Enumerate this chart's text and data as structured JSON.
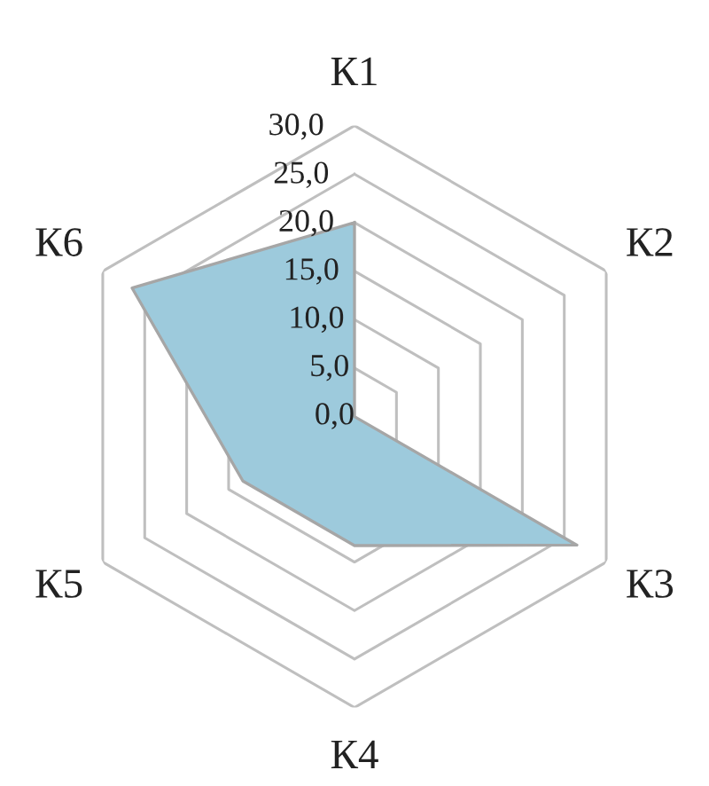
{
  "chart_data": {
    "type": "radar",
    "categories": [
      "К1",
      "К2",
      "К3",
      "К4",
      "К5",
      "К6"
    ],
    "series": [
      {
        "color": "#9dcadc",
        "values": [
          20.0,
          0.0,
          26.5,
          13.3,
          13.3,
          26.5
        ]
      }
    ],
    "ylim": [
      0,
      30
    ],
    "yticks": [
      {
        "value": 0,
        "label": "0,0"
      },
      {
        "value": 5,
        "label": "5,0"
      },
      {
        "value": 10,
        "label": "10,0"
      },
      {
        "value": 15,
        "label": "15,0"
      },
      {
        "value": 20,
        "label": "20,0"
      },
      {
        "value": 25,
        "label": "25,0"
      },
      {
        "value": 30,
        "label": "30,0"
      }
    ],
    "grid": true
  }
}
